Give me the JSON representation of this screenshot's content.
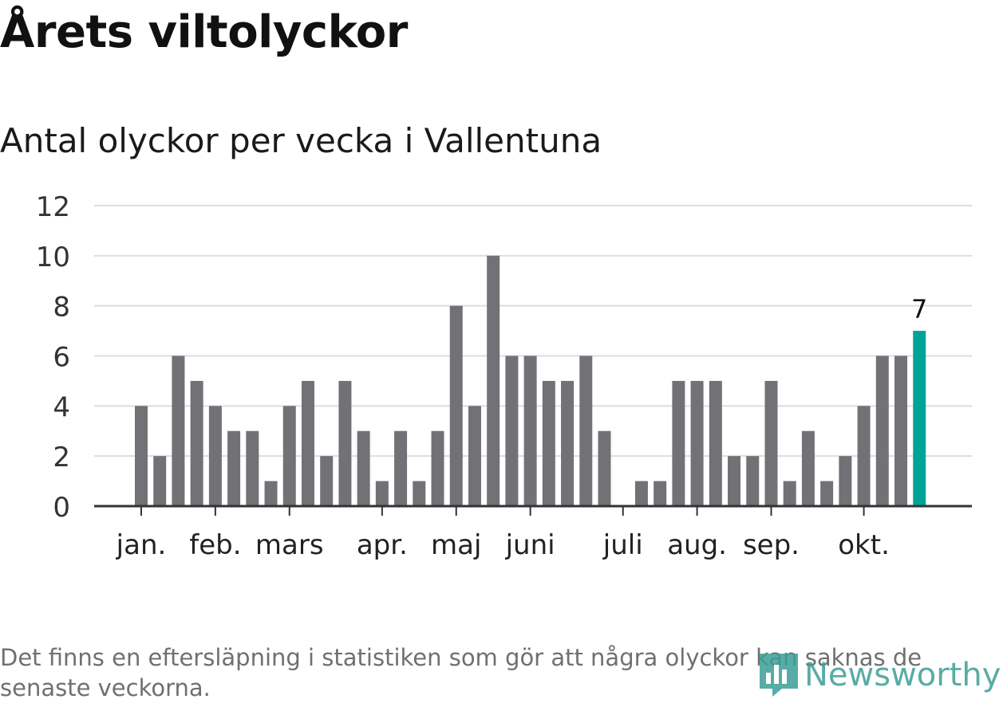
{
  "chart_data": {
    "type": "bar",
    "title": "Årets viltolyckor",
    "subtitle": "Antal olyckor per vecka i Vallentuna",
    "xlabel": "",
    "ylabel": "",
    "ylim": [
      0,
      12
    ],
    "yticks": [
      "0",
      "2",
      "4",
      "6",
      "8",
      "10",
      "12"
    ],
    "grid": true,
    "month_labels": [
      {
        "label": "jan.",
        "week": 1
      },
      {
        "label": "feb.",
        "week": 5
      },
      {
        "label": "mars",
        "week": 9
      },
      {
        "label": "apr.",
        "week": 14
      },
      {
        "label": "maj",
        "week": 18
      },
      {
        "label": "juni",
        "week": 22
      },
      {
        "label": "juli",
        "week": 27
      },
      {
        "label": "aug.",
        "week": 31
      },
      {
        "label": "sep.",
        "week": 35
      },
      {
        "label": "okt.",
        "week": 40
      }
    ],
    "weeks": [
      1,
      2,
      3,
      4,
      5,
      6,
      7,
      8,
      9,
      10,
      11,
      12,
      13,
      14,
      15,
      16,
      17,
      18,
      19,
      20,
      21,
      22,
      23,
      24,
      25,
      26,
      27,
      28,
      29,
      30,
      31,
      32,
      33,
      34,
      35,
      36,
      37,
      38,
      39,
      40,
      41,
      42,
      43
    ],
    "values": [
      4,
      2,
      6,
      5,
      4,
      3,
      3,
      1,
      4,
      5,
      2,
      5,
      3,
      1,
      3,
      1,
      3,
      8,
      4,
      10,
      6,
      6,
      5,
      5,
      6,
      3,
      0,
      1,
      1,
      5,
      5,
      5,
      2,
      2,
      5,
      1,
      3,
      1,
      2,
      4,
      6,
      6,
      7
    ],
    "highlight_label": "7",
    "colors": {
      "bar": "#727176",
      "highlight": "#00a396",
      "grid": "#dddddd",
      "axis": "#333333"
    }
  },
  "note": "Det finns en eftersläpning i statistiken som gör att några olyckor kan saknas de senaste veckorna.",
  "logo": {
    "text": "Newsworthy",
    "icon": "newsworthy-logo-icon"
  }
}
